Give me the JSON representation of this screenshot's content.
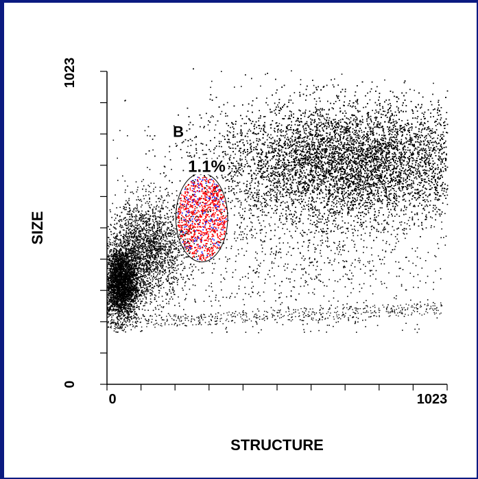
{
  "chart_data": {
    "type": "scatter",
    "title": "",
    "xlabel": "STRUCTURE",
    "ylabel": "SIZE",
    "xlim": [
      0,
      1023
    ],
    "ylim": [
      0,
      1023
    ],
    "x_tick_labels": [
      "0",
      "1023"
    ],
    "y_tick_labels": [
      "0",
      "1023"
    ],
    "gate": {
      "label": "B",
      "percent_label": "1.1%",
      "center": [
        285,
        545
      ],
      "x_halfwidth": 78,
      "y_halfwidth": 145,
      "event_colors": [
        "#ff0000",
        "#2020ff"
      ]
    },
    "populations": [
      {
        "name": "",
        "center": [
          40,
          330
        ],
        "spread": [
          28,
          60
        ],
        "density": "high"
      },
      {
        "name": "",
        "center": [
          120,
          440
        ],
        "spread": [
          60,
          80
        ],
        "density": "medium"
      },
      {
        "name": "",
        "center": [
          730,
          730
        ],
        "spread": [
          200,
          95
        ],
        "density": "very high"
      },
      {
        "name": "",
        "center": [
          600,
          500
        ],
        "spread": [
          260,
          200
        ],
        "density": "low"
      }
    ],
    "grid": false,
    "legend": "none",
    "point_color": "#000000"
  }
}
